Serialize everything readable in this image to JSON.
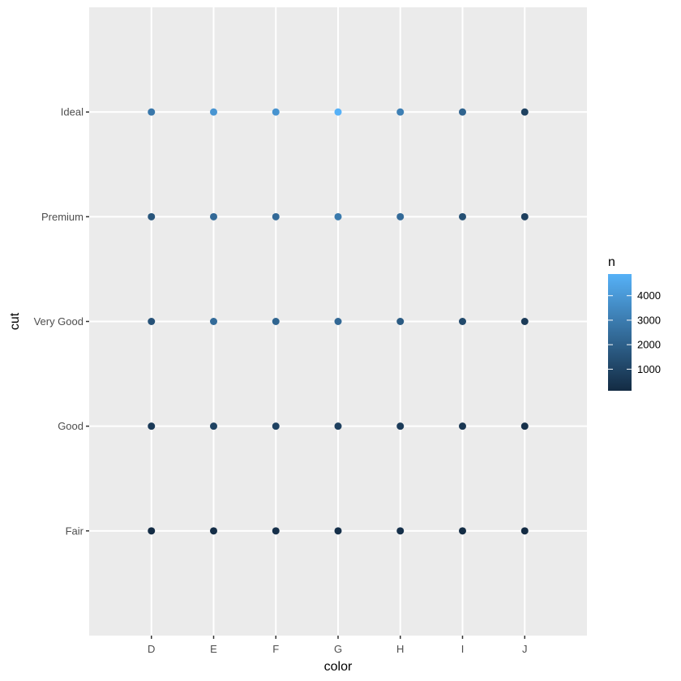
{
  "chart_data": {
    "type": "scatter",
    "title": "",
    "xlabel": "color",
    "ylabel": "cut",
    "x_categories": [
      "D",
      "E",
      "F",
      "G",
      "H",
      "I",
      "J"
    ],
    "y_categories": [
      "Fair",
      "Good",
      "Very Good",
      "Premium",
      "Ideal"
    ],
    "points": [
      {
        "x": "D",
        "y": "Fair",
        "n": 163
      },
      {
        "x": "E",
        "y": "Fair",
        "n": 224
      },
      {
        "x": "F",
        "y": "Fair",
        "n": 312
      },
      {
        "x": "G",
        "y": "Fair",
        "n": 314
      },
      {
        "x": "H",
        "y": "Fair",
        "n": 303
      },
      {
        "x": "I",
        "y": "Fair",
        "n": 175
      },
      {
        "x": "J",
        "y": "Fair",
        "n": 119
      },
      {
        "x": "D",
        "y": "Good",
        "n": 662
      },
      {
        "x": "E",
        "y": "Good",
        "n": 933
      },
      {
        "x": "F",
        "y": "Good",
        "n": 909
      },
      {
        "x": "G",
        "y": "Good",
        "n": 871
      },
      {
        "x": "H",
        "y": "Good",
        "n": 702
      },
      {
        "x": "I",
        "y": "Good",
        "n": 522
      },
      {
        "x": "J",
        "y": "Good",
        "n": 307
      },
      {
        "x": "D",
        "y": "Very Good",
        "n": 1513
      },
      {
        "x": "E",
        "y": "Very Good",
        "n": 2400
      },
      {
        "x": "F",
        "y": "Very Good",
        "n": 2164
      },
      {
        "x": "G",
        "y": "Very Good",
        "n": 2299
      },
      {
        "x": "H",
        "y": "Very Good",
        "n": 1824
      },
      {
        "x": "I",
        "y": "Very Good",
        "n": 1204
      },
      {
        "x": "J",
        "y": "Very Good",
        "n": 678
      },
      {
        "x": "D",
        "y": "Premium",
        "n": 1603
      },
      {
        "x": "E",
        "y": "Premium",
        "n": 2337
      },
      {
        "x": "F",
        "y": "Premium",
        "n": 2331
      },
      {
        "x": "G",
        "y": "Premium",
        "n": 2924
      },
      {
        "x": "H",
        "y": "Premium",
        "n": 2360
      },
      {
        "x": "I",
        "y": "Premium",
        "n": 1428
      },
      {
        "x": "J",
        "y": "Premium",
        "n": 808
      },
      {
        "x": "D",
        "y": "Ideal",
        "n": 2834
      },
      {
        "x": "E",
        "y": "Ideal",
        "n": 3903
      },
      {
        "x": "F",
        "y": "Ideal",
        "n": 3826
      },
      {
        "x": "G",
        "y": "Ideal",
        "n": 4884
      },
      {
        "x": "H",
        "y": "Ideal",
        "n": 3115
      },
      {
        "x": "I",
        "y": "Ideal",
        "n": 2093
      },
      {
        "x": "J",
        "y": "Ideal",
        "n": 896
      }
    ],
    "legend": {
      "title": "n",
      "placement": "right",
      "range": [
        119,
        4884
      ],
      "ticks": [
        1000,
        2000,
        3000,
        4000
      ],
      "tick_labels": [
        "1000",
        "2000",
        "3000",
        "4000"
      ],
      "color_low": "#132B43",
      "color_high": "#56B1F7"
    },
    "grid": true,
    "panel_background": "#EBEBEB",
    "grid_color": "#FFFFFF"
  }
}
